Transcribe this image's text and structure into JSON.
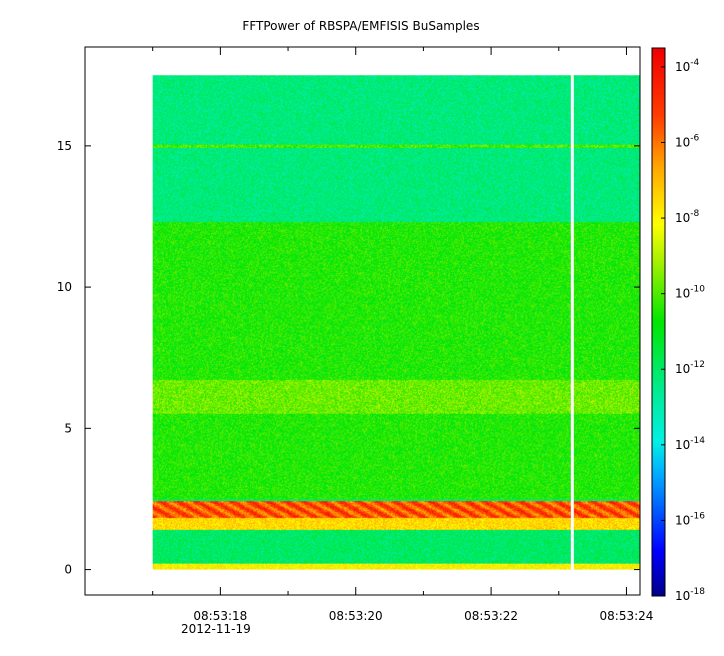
{
  "chart_data": {
    "type": "heatmap",
    "title": "FFTPower of RBSPA/EMFISIS  BuSamples",
    "xlabel": "",
    "ylabel": "",
    "date_label": "2012-11-19",
    "x_ticks": [
      {
        "t": "08:53:18",
        "label": "08:53:18"
      },
      {
        "t": "08:53:20",
        "label": "08:53:20"
      },
      {
        "t": "08:53:22",
        "label": "08:53:22"
      },
      {
        "t": "08:53:24",
        "label": "08:53:24"
      }
    ],
    "x_minor_ticks": [
      "08:53:17",
      "08:53:19",
      "08:53:21",
      "08:53:23"
    ],
    "xlim": [
      "08:53:16.0",
      "08:53:24.2"
    ],
    "data_time_range": [
      "08:53:17.0",
      "08:53:24.2"
    ],
    "data_gap_time": "08:53:23.2",
    "y_ticks": [
      0,
      5,
      10,
      15
    ],
    "ylim": [
      -0.9,
      18.5
    ],
    "data_freq_range": [
      0,
      17.5
    ],
    "colorbar": {
      "scale": "log",
      "range_exp": [
        -18,
        -3.5
      ],
      "tick_exps": [
        -4,
        -6,
        -8,
        -10,
        -12,
        -14,
        -16,
        -18
      ],
      "tick_base": "10"
    },
    "features": [
      {
        "name": "background high band",
        "y_range": [
          12.3,
          17.5
        ],
        "log_power": -12.3
      },
      {
        "name": "background mid band",
        "y_range": [
          2.5,
          12.3
        ],
        "log_power": -10.5
      },
      {
        "name": "line at 15",
        "y": 15.0,
        "log_power": -10.0
      },
      {
        "name": "enhancement near 6",
        "y_range": [
          5.5,
          6.7
        ],
        "log_power": -9.7
      },
      {
        "name": "strong band",
        "y_range": [
          1.8,
          2.4
        ],
        "log_power": -5.5
      },
      {
        "name": "band near 1.6",
        "y_range": [
          1.4,
          1.8
        ],
        "log_power": -7.5
      },
      {
        "name": "bottom line",
        "y_range": [
          0.0,
          0.2
        ],
        "log_power": -8.0
      }
    ],
    "grid": false
  }
}
